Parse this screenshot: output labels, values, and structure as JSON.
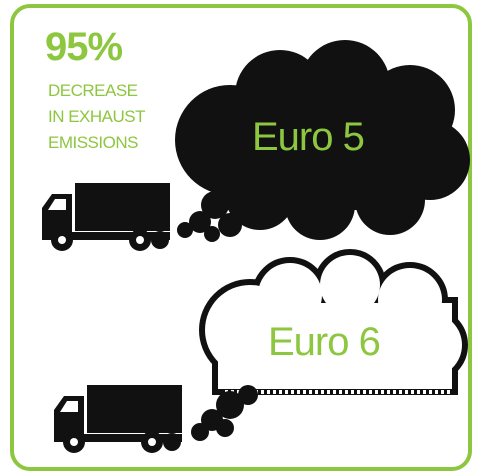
{
  "headline": {
    "figure": "95%",
    "lines": [
      "DECREASE",
      "IN EXHAUST",
      "EMISSIONS"
    ]
  },
  "clouds": [
    {
      "label": "Euro 5"
    },
    {
      "label": "Euro 6"
    }
  ]
}
